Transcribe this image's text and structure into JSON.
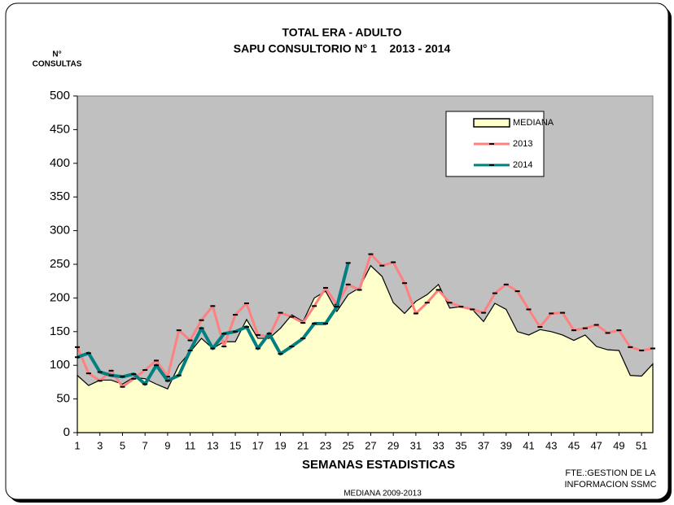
{
  "chart_data": {
    "type": "line",
    "title": "TOTAL ERA - ADULTO",
    "subtitle": "SAPU CONSULTORIO N° 1    2013 - 2014",
    "y_label": [
      "N°",
      "CONSULTAS"
    ],
    "x_label": "SEMANAS ESTADISTICAS",
    "source": [
      "FTE.:GESTION DE LA",
      "INFORMACION SSMC"
    ],
    "note": "MEDIANA 2009-2013",
    "x": [
      1,
      2,
      3,
      4,
      5,
      6,
      7,
      8,
      9,
      10,
      11,
      12,
      13,
      14,
      15,
      16,
      17,
      18,
      19,
      20,
      21,
      22,
      23,
      24,
      25,
      26,
      27,
      28,
      29,
      30,
      31,
      32,
      33,
      34,
      35,
      36,
      37,
      38,
      39,
      40,
      41,
      42,
      43,
      44,
      45,
      46,
      47,
      48,
      49,
      50,
      51,
      52
    ],
    "series": [
      {
        "name": "MEDIANA",
        "color": "#ffffcc",
        "area": true,
        "values": [
          85,
          70,
          78,
          78,
          72,
          82,
          80,
          72,
          65,
          100,
          120,
          140,
          125,
          135,
          135,
          168,
          140,
          140,
          155,
          175,
          165,
          200,
          210,
          180,
          205,
          215,
          248,
          232,
          193,
          177,
          195,
          205,
          220,
          185,
          187,
          183,
          165,
          192,
          183,
          150,
          145,
          153,
          150,
          145,
          137,
          145,
          128,
          123,
          122,
          85,
          84,
          102
        ]
      },
      {
        "name": "2013",
        "color": "#ff8080",
        "values": [
          127,
          88,
          77,
          92,
          68,
          80,
          93,
          107,
          83,
          152,
          137,
          167,
          188,
          128,
          175,
          192,
          145,
          143,
          178,
          172,
          163,
          188,
          215,
          190,
          220,
          212,
          265,
          248,
          253,
          222,
          177,
          193,
          212,
          193,
          187,
          183,
          178,
          207,
          220,
          210,
          183,
          157,
          177,
          178,
          152,
          155,
          160,
          148,
          152,
          127,
          122,
          125
        ]
      },
      {
        "name": "2014",
        "color": "#008080",
        "values": [
          112,
          118,
          90,
          85,
          83,
          87,
          72,
          100,
          77,
          85,
          122,
          155,
          125,
          147,
          150,
          157,
          125,
          147,
          117,
          128,
          140,
          162,
          162,
          187,
          252,
          null,
          null,
          null,
          null,
          null,
          null,
          null,
          null,
          null,
          null,
          null,
          null,
          null,
          null,
          null,
          null,
          null,
          null,
          null,
          null,
          null,
          null,
          null,
          null,
          null,
          null,
          null
        ]
      }
    ],
    "xlim": [
      1,
      52
    ],
    "xticks": [
      1,
      3,
      5,
      7,
      9,
      11,
      13,
      15,
      17,
      19,
      21,
      23,
      25,
      27,
      29,
      31,
      33,
      35,
      37,
      39,
      41,
      43,
      45,
      47,
      49,
      51
    ],
    "ylim": [
      0,
      500
    ],
    "yticks": [
      0,
      50,
      100,
      150,
      200,
      250,
      300,
      350,
      400,
      450,
      500
    ],
    "grid": false,
    "legend": "top-right",
    "plot_background": "#c0c0c0"
  }
}
